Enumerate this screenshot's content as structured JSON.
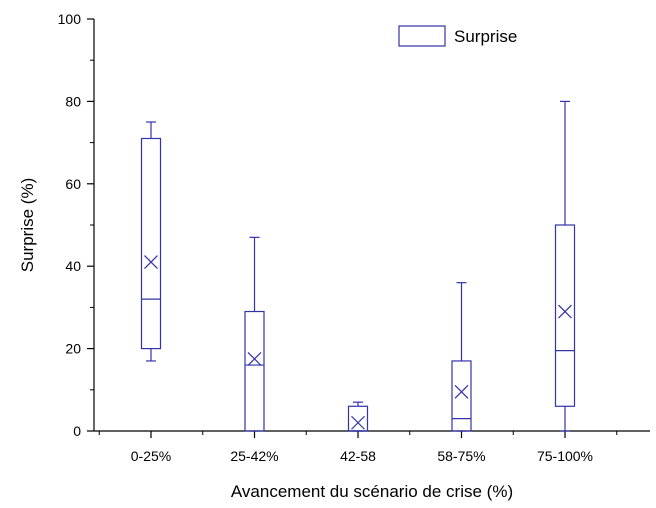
{
  "chart_data": {
    "type": "box",
    "xlabel": "Avancement du scénario de crise (%)",
    "ylabel": "Surprise (%)",
    "ylim": [
      0,
      100
    ],
    "yticks": [
      0,
      20,
      40,
      60,
      80,
      100
    ],
    "y_minor_step": 10,
    "grid": false,
    "legend": {
      "position": "top-right",
      "label": "Surprise"
    },
    "box_color": "#3333aa",
    "categories": [
      "0-25%",
      "25-42%",
      "42-58",
      "58-75%",
      "75-100%"
    ],
    "series": [
      {
        "name": "Surprise",
        "boxes": [
          {
            "whisker_low": 17,
            "q1": 20,
            "median": 32,
            "q3": 71,
            "whisker_high": 75,
            "mean": 41
          },
          {
            "whisker_low": 0,
            "q1": 0,
            "median": 16,
            "q3": 29,
            "whisker_high": 47,
            "mean": 17.5
          },
          {
            "whisker_low": 0,
            "q1": 0,
            "median": 0,
            "q3": 6,
            "whisker_high": 7,
            "mean": 2
          },
          {
            "whisker_low": 0,
            "q1": 0,
            "median": 3,
            "q3": 17,
            "whisker_high": 36,
            "mean": 9.5
          },
          {
            "whisker_low": 0,
            "q1": 6,
            "median": 19.5,
            "q3": 50,
            "whisker_high": 80,
            "mean": 29
          }
        ]
      }
    ]
  }
}
